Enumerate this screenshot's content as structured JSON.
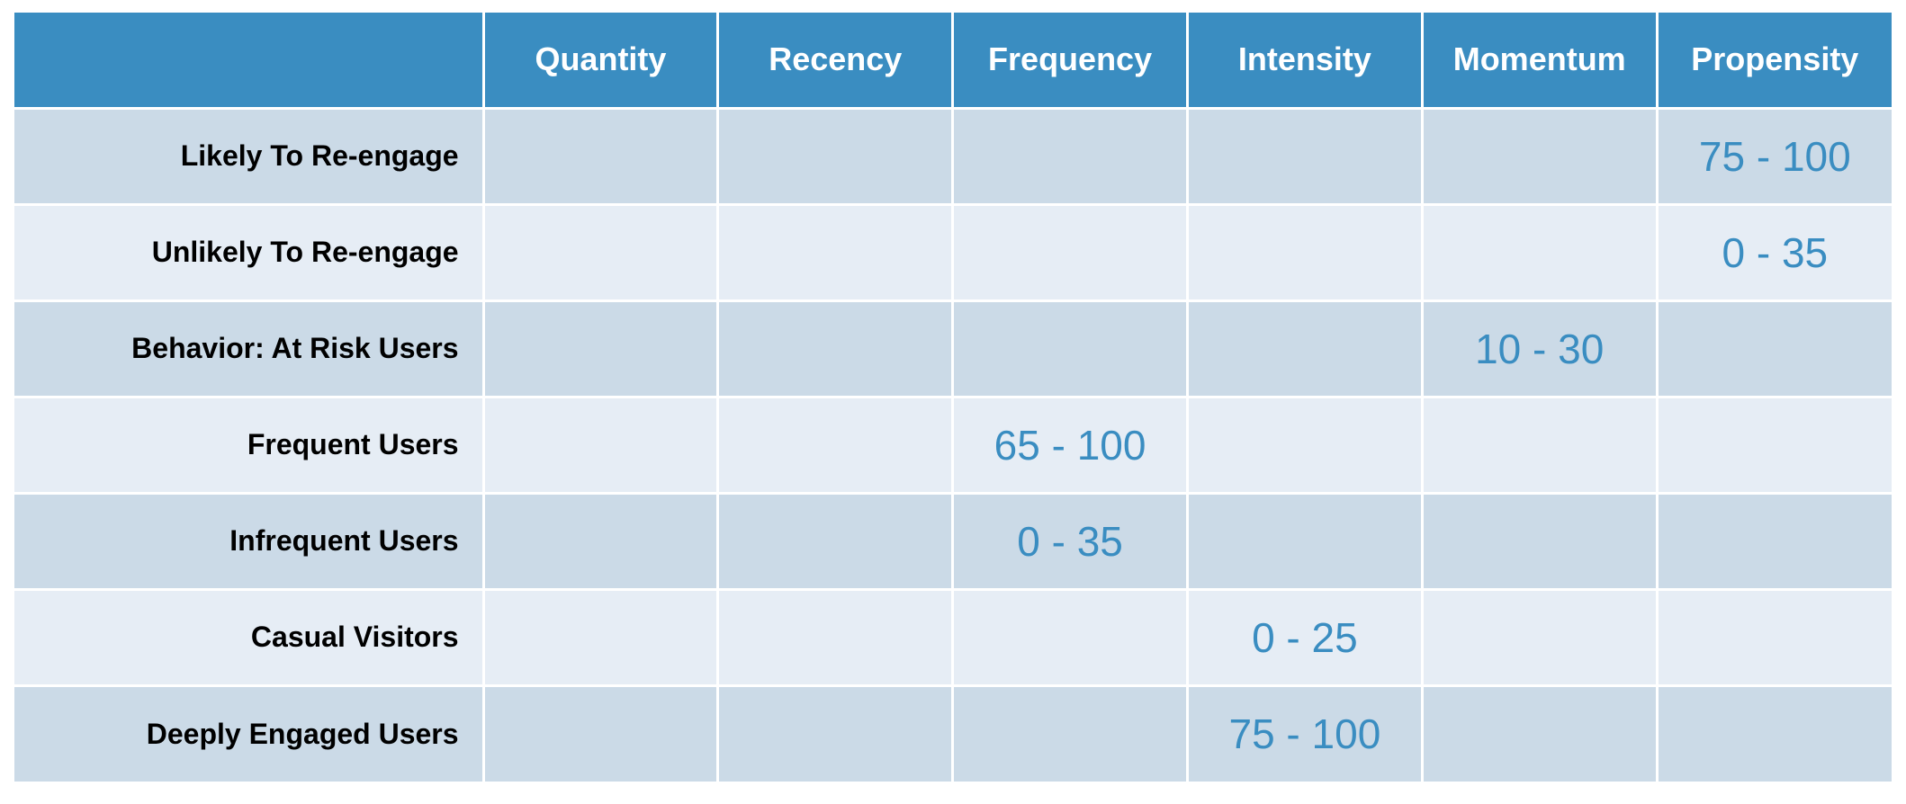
{
  "chart_data": {
    "type": "table",
    "columns": [
      "Quantity",
      "Recency",
      "Frequency",
      "Intensity",
      "Momentum",
      "Propensity"
    ],
    "rows": [
      {
        "label": "Likely To Re-engage",
        "cells": [
          "",
          "",
          "",
          "",
          "",
          "75 - 100"
        ]
      },
      {
        "label": "Unlikely To Re-engage",
        "cells": [
          "",
          "",
          "",
          "",
          "",
          "0 - 35"
        ]
      },
      {
        "label": "Behavior: At Risk Users",
        "cells": [
          "",
          "",
          "",
          "",
          "10 - 30",
          ""
        ]
      },
      {
        "label": "Frequent Users",
        "cells": [
          "",
          "",
          "65 - 100",
          "",
          "",
          ""
        ]
      },
      {
        "label": "Infrequent Users",
        "cells": [
          "",
          "",
          "0 - 35",
          "",
          "",
          ""
        ]
      },
      {
        "label": "Casual Visitors",
        "cells": [
          "",
          "",
          "",
          "0 - 25",
          "",
          ""
        ]
      },
      {
        "label": "Deeply Engaged Users",
        "cells": [
          "",
          "",
          "",
          "75 - 100",
          "",
          ""
        ]
      }
    ],
    "colors": {
      "header_bg": "#3a8dc1",
      "header_text": "#ffffff",
      "row_odd_bg": "#cbdae7",
      "row_even_bg": "#e6edf5",
      "value_text": "#3a8dc1",
      "label_text": "#000000"
    }
  }
}
